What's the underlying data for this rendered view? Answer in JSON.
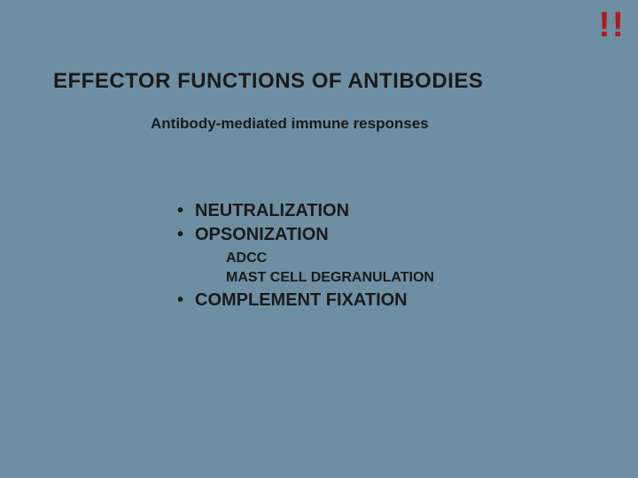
{
  "slide": {
    "background_color": "#6e8fa3",
    "title": {
      "text": "EFFECTOR FUNCTIONS OF ANTIBODIES",
      "color": "#1a1a1a",
      "fontsize": 24
    },
    "subtitle": {
      "text": "Antibody-mediated immune responses",
      "color": "#1a1a1a",
      "fontsize": 17
    },
    "emphasis": {
      "text": "!!",
      "color": "#b11a1a",
      "fontsize": 40
    },
    "bullets": {
      "color": "#1a1a1a",
      "fontsize": 20,
      "sub_fontsize": 16,
      "items": [
        {
          "label": "NEUTRALIZATION"
        },
        {
          "label": "OPSONIZATION"
        },
        {
          "label": "COMPLEMENT FIXATION"
        }
      ],
      "sub_items": [
        {
          "label": "ADCC"
        },
        {
          "label": "MAST CELL DEGRANULATION"
        }
      ]
    }
  }
}
